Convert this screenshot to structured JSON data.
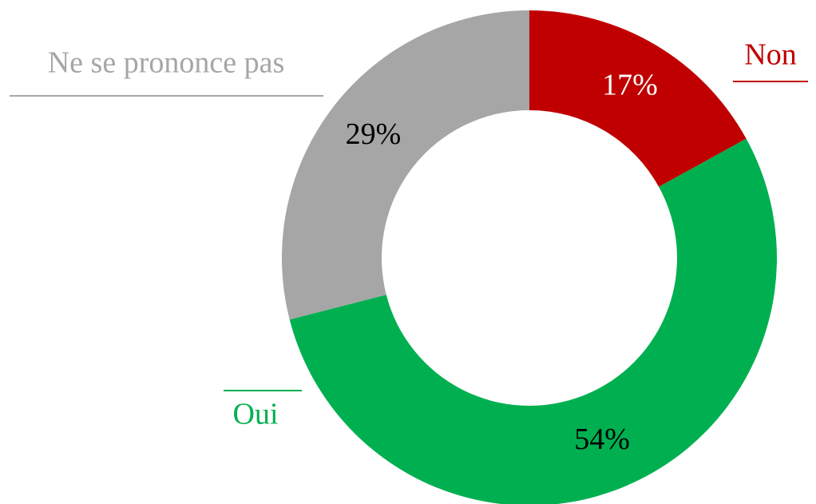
{
  "chart_data": {
    "type": "donut",
    "categories": [
      "Non",
      "Oui",
      "Ne se prononce pas"
    ],
    "values": [
      17,
      54,
      29
    ],
    "value_labels": [
      "17%",
      "54%",
      "29%"
    ],
    "colors": [
      "#c00000",
      "#00b050",
      "#a6a6a6"
    ]
  }
}
